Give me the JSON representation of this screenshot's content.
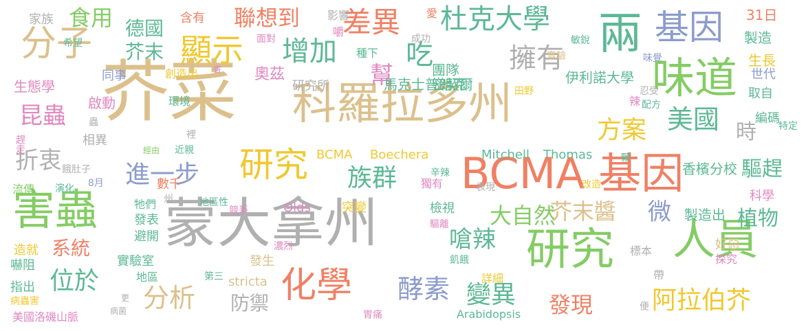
{
  "palette": {
    "tan": "#dcc08c",
    "green": "#84cc64",
    "teal": "#5cb896",
    "orange": "#f08064",
    "blue": "#8c9ccc",
    "gray": "#b0b0b0",
    "pink": "#e088c0",
    "yellow": "#f0c830"
  },
  "words": [
    {
      "text": "芥菜",
      "color": "tan"
    },
    {
      "text": "科羅拉多州",
      "color": "tan"
    },
    {
      "text": "蒙大拿州",
      "color": "gray"
    },
    {
      "text": "BCMA 基因",
      "color": "orange"
    },
    {
      "text": "兩",
      "color": "teal"
    },
    {
      "text": "味道",
      "color": "green"
    },
    {
      "text": "研究",
      "color": "green"
    },
    {
      "text": "人員",
      "color": "green"
    },
    {
      "text": "基因",
      "color": "blue"
    },
    {
      "text": "害蟲",
      "color": "green"
    },
    {
      "text": "分子",
      "color": "tan"
    },
    {
      "text": "顯示",
      "color": "yellow"
    },
    {
      "text": "差異",
      "color": "orange"
    },
    {
      "text": "杜克大學",
      "color": "teal"
    },
    {
      "text": "研究",
      "color": "yellow"
    },
    {
      "text": "化學",
      "color": "orange"
    },
    {
      "text": "增加",
      "color": "teal"
    },
    {
      "text": "吃",
      "color": "teal"
    },
    {
      "text": "擁有",
      "color": "gray"
    },
    {
      "text": "聯想到",
      "color": "orange"
    },
    {
      "text": "食用",
      "color": "green"
    },
    {
      "text": "德國",
      "color": "teal"
    },
    {
      "text": "芥末",
      "color": "teal"
    },
    {
      "text": "方案",
      "color": "yellow"
    },
    {
      "text": "美國",
      "color": "teal"
    },
    {
      "text": "時",
      "color": "gray"
    },
    {
      "text": "昆蟲",
      "color": "pink"
    },
    {
      "text": "折衷",
      "color": "gray"
    },
    {
      "text": "進一步",
      "color": "blue"
    },
    {
      "text": "族群",
      "color": "teal"
    },
    {
      "text": "大自然",
      "color": "green"
    },
    {
      "text": "芥末醬",
      "color": "tan"
    },
    {
      "text": "微",
      "color": "blue"
    },
    {
      "text": "驅趕",
      "color": "teal"
    },
    {
      "text": "植物",
      "color": "teal"
    },
    {
      "text": "嗆辣",
      "color": "teal"
    },
    {
      "text": "位於",
      "color": "teal"
    },
    {
      "text": "分析",
      "color": "tan"
    },
    {
      "text": "系統",
      "color": "orange"
    },
    {
      "text": "酵素",
      "color": "blue"
    },
    {
      "text": "變異",
      "color": "teal"
    },
    {
      "text": "發現",
      "color": "orange"
    },
    {
      "text": "阿拉伯芥",
      "color": "yellow"
    },
    {
      "text": "防禦",
      "color": "gray"
    },
    {
      "text": "幫",
      "color": "pink"
    },
    {
      "text": "馬克士普朗克",
      "color": "teal"
    },
    {
      "text": "伊利諾大學",
      "color": "teal"
    },
    {
      "text": "香檳分校",
      "color": "teal"
    },
    {
      "text": "奧茲",
      "color": "pink"
    },
    {
      "text": "研究所",
      "color": "gray"
    },
    {
      "text": "團隊",
      "color": "teal"
    },
    {
      "text": "密契爾",
      "color": "teal"
    },
    {
      "text": "BCMA",
      "color": "yellow"
    },
    {
      "text": "Boechera",
      "color": "yellow"
    },
    {
      "text": "Mitchell",
      "color": "teal"
    },
    {
      "text": "Thomas",
      "color": "teal"
    },
    {
      "text": "Olds",
      "color": "pink"
    },
    {
      "text": "stricta",
      "color": "tan"
    },
    {
      "text": "Arabidopsis",
      "color": "teal"
    },
    {
      "text": "製造出",
      "color": "teal"
    },
    {
      "text": "家族",
      "color": "gray"
    },
    {
      "text": "含有",
      "color": "orange"
    },
    {
      "text": "影響",
      "color": "gray"
    },
    {
      "text": "愛",
      "color": "orange"
    },
    {
      "text": "31日",
      "color": "orange"
    },
    {
      "text": "製造",
      "color": "teal"
    },
    {
      "text": "生長",
      "color": "yellow"
    },
    {
      "text": "世代",
      "color": "blue"
    },
    {
      "text": "取自",
      "color": "teal"
    },
    {
      "text": "生態學",
      "color": "pink"
    },
    {
      "text": "同事",
      "color": "blue"
    },
    {
      "text": "創造出",
      "color": "yellow"
    },
    {
      "text": "啟動",
      "color": "pink"
    },
    {
      "text": "環境",
      "color": "teal"
    },
    {
      "text": "相異",
      "color": "gray"
    },
    {
      "text": "蟲",
      "color": "gray"
    },
    {
      "text": "趕走",
      "color": "pink"
    },
    {
      "text": "餓肚子",
      "color": "gray"
    },
    {
      "text": "8月",
      "color": "blue"
    },
    {
      "text": "數千",
      "color": "orange"
    },
    {
      "text": "牠們",
      "color": "teal"
    },
    {
      "text": "演化",
      "color": "teal"
    },
    {
      "text": "流傳",
      "color": "green"
    },
    {
      "text": "州",
      "color": "gray"
    },
    {
      "text": "地區性",
      "color": "teal"
    },
    {
      "text": "發表",
      "color": "teal"
    },
    {
      "text": "避開",
      "color": "teal"
    },
    {
      "text": "競爭",
      "color": "pink"
    },
    {
      "text": "突變",
      "color": "yellow"
    },
    {
      "text": "檢視",
      "color": "teal"
    },
    {
      "text": "驅離",
      "color": "pink"
    },
    {
      "text": "獨有",
      "color": "pink"
    },
    {
      "text": "辛辣",
      "color": "teal"
    },
    {
      "text": "表現",
      "color": "gray"
    },
    {
      "text": "改造",
      "color": "yellow"
    },
    {
      "text": "顆",
      "color": "teal"
    },
    {
      "text": "標本",
      "color": "gray"
    },
    {
      "text": "好惡",
      "color": "tan"
    },
    {
      "text": "探究",
      "color": "pink"
    },
    {
      "text": "科學",
      "color": "pink"
    },
    {
      "text": "帶",
      "color": "gray"
    },
    {
      "text": "便",
      "color": "gray"
    },
    {
      "text": "造就",
      "color": "yellow"
    },
    {
      "text": "嚇阻",
      "color": "teal"
    },
    {
      "text": "實驗室",
      "color": "teal"
    },
    {
      "text": "發生",
      "color": "tan"
    },
    {
      "text": "濃烈",
      "color": "pink"
    },
    {
      "text": "飢餓",
      "color": "teal"
    },
    {
      "text": "詳細",
      "color": "yellow"
    },
    {
      "text": "指出",
      "color": "teal"
    },
    {
      "text": "地區",
      "color": "teal"
    },
    {
      "text": "第三",
      "color": "teal"
    },
    {
      "text": "病蟲害",
      "color": "yellow"
    },
    {
      "text": "美國洛磯山脈",
      "color": "pink"
    },
    {
      "text": "更",
      "color": "gray"
    },
    {
      "text": "病菌",
      "color": "gray"
    },
    {
      "text": "胃痛",
      "color": "pink"
    },
    {
      "text": "希望",
      "color": "teal"
    },
    {
      "text": "面對",
      "color": "pink"
    },
    {
      "text": "嚼",
      "color": "pink"
    },
    {
      "text": "種下",
      "color": "teal"
    },
    {
      "text": "成功",
      "color": "gray"
    },
    {
      "text": "敏銳",
      "color": "teal"
    },
    {
      "text": "實驗",
      "color": "tan"
    },
    {
      "text": "味覺",
      "color": "blue"
    },
    {
      "text": "害",
      "color": "pink"
    },
    {
      "text": "田野",
      "color": "yellow"
    },
    {
      "text": "辣",
      "color": "pink"
    },
    {
      "text": "忍受",
      "color": "gray"
    },
    {
      "text": "配方",
      "color": "teal"
    },
    {
      "text": "編碼",
      "color": "teal"
    },
    {
      "text": "特定",
      "color": "teal"
    },
    {
      "text": "經由",
      "color": "green"
    },
    {
      "text": "裡",
      "color": "gray"
    },
    {
      "text": "近親",
      "color": "teal"
    },
    {
      "text": "三",
      "color": "yellow"
    }
  ]
}
